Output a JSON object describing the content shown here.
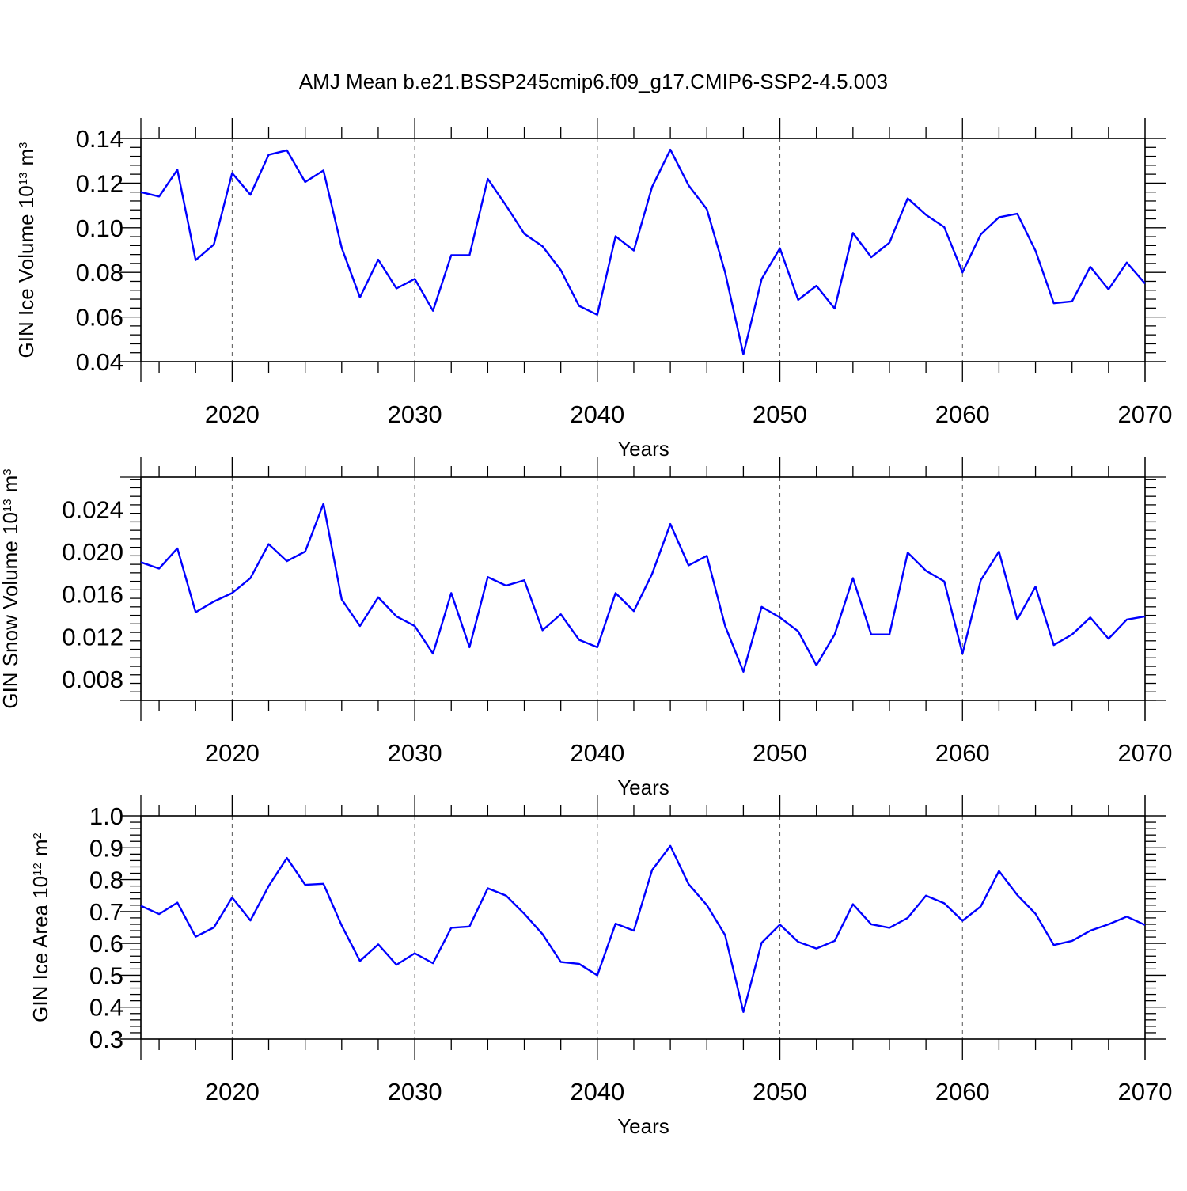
{
  "title": "AMJ Mean b.e21.BSSP245cmip6.f09_g17.CMIP6-SSP2-4.5.003",
  "colors": {
    "line": "#0000ff",
    "axis": "#000000",
    "grid": "#555555"
  },
  "chart_data": [
    {
      "type": "line",
      "ylabel_main": "GIN Ice Volume 10",
      "ylabel_exp": "13",
      "ylabel_unit": "m",
      "ylabel_unit_exp": "3",
      "xlabel": "Years",
      "xlim": [
        2015,
        2070
      ],
      "ylim": [
        0.04,
        0.14
      ],
      "yticks": [
        0.04,
        0.06,
        0.08,
        0.1,
        0.12,
        0.14
      ],
      "ytick_labels": [
        "0.04",
        "0.06",
        "0.08",
        "0.10",
        "0.12",
        "0.14"
      ],
      "xticks": [
        2020,
        2030,
        2040,
        2050,
        2060,
        2070
      ],
      "xtick_labels": [
        "2020",
        "2030",
        "2040",
        "2050",
        "2060",
        "2070"
      ],
      "grid": "vertical dashed at major x ticks",
      "x": [
        2015,
        2016,
        2017,
        2018,
        2019,
        2020,
        2021,
        2022,
        2023,
        2024,
        2025,
        2026,
        2027,
        2028,
        2029,
        2030,
        2031,
        2032,
        2033,
        2034,
        2035,
        2036,
        2037,
        2038,
        2039,
        2040,
        2041,
        2042,
        2043,
        2044,
        2045,
        2046,
        2047,
        2048,
        2049,
        2050,
        2051,
        2052,
        2053,
        2054,
        2055,
        2056,
        2057,
        2058,
        2059,
        2060,
        2061,
        2062,
        2063,
        2064,
        2065,
        2066,
        2067,
        2068,
        2069,
        2070
      ],
      "y": [
        0.116,
        0.114,
        0.126,
        0.0855,
        0.0925,
        0.1245,
        0.1148,
        0.1327,
        0.1347,
        0.1205,
        0.1257,
        0.091,
        0.0688,
        0.0857,
        0.0728,
        0.0771,
        0.0628,
        0.0877,
        0.0877,
        0.1219,
        0.11,
        0.0973,
        0.0917,
        0.081,
        0.065,
        0.061,
        0.0962,
        0.0898,
        0.1183,
        0.135,
        0.119,
        0.1083,
        0.08,
        0.0433,
        0.077,
        0.0908,
        0.0677,
        0.074,
        0.0638,
        0.0977,
        0.0868,
        0.0933,
        0.1132,
        0.1058,
        0.1003,
        0.08,
        0.097,
        0.1047,
        0.1063,
        0.0897,
        0.0662,
        0.067,
        0.0825,
        0.0724,
        0.0844,
        0.075
      ]
    },
    {
      "type": "line",
      "ylabel_main": "GIN Snow Volume 10",
      "ylabel_exp": "13",
      "ylabel_unit": "m",
      "ylabel_unit_exp": "3",
      "xlabel": "Years",
      "xlim": [
        2015,
        2070
      ],
      "ylim": [
        0.006,
        0.027
      ],
      "yticks": [
        0.008,
        0.012,
        0.016,
        0.02,
        0.024
      ],
      "ytick_labels": [
        "0.008",
        "0.012",
        "0.016",
        "0.020",
        "0.024"
      ],
      "xticks": [
        2020,
        2030,
        2040,
        2050,
        2060,
        2070
      ],
      "xtick_labels": [
        "2020",
        "2030",
        "2040",
        "2050",
        "2060",
        "2070"
      ],
      "grid": "vertical dashed at major x ticks",
      "x": [
        2015,
        2016,
        2017,
        2018,
        2019,
        2020,
        2021,
        2022,
        2023,
        2024,
        2025,
        2026,
        2027,
        2028,
        2029,
        2030,
        2031,
        2032,
        2033,
        2034,
        2035,
        2036,
        2037,
        2038,
        2039,
        2040,
        2041,
        2042,
        2043,
        2044,
        2045,
        2046,
        2047,
        2048,
        2049,
        2050,
        2051,
        2052,
        2053,
        2054,
        2055,
        2056,
        2057,
        2058,
        2059,
        2060,
        2061,
        2062,
        2063,
        2064,
        2065,
        2066,
        2067,
        2068,
        2069,
        2070
      ],
      "y": [
        0.019,
        0.0184,
        0.0203,
        0.0143,
        0.0153,
        0.0161,
        0.0175,
        0.0207,
        0.0191,
        0.02,
        0.0245,
        0.0155,
        0.013,
        0.0157,
        0.0139,
        0.013,
        0.0104,
        0.0161,
        0.011,
        0.0176,
        0.0168,
        0.0173,
        0.0126,
        0.0141,
        0.0117,
        0.011,
        0.0161,
        0.0144,
        0.0179,
        0.0226,
        0.0187,
        0.0196,
        0.013,
        0.0087,
        0.0148,
        0.0138,
        0.0125,
        0.0093,
        0.0122,
        0.0175,
        0.0122,
        0.0122,
        0.0199,
        0.0182,
        0.0172,
        0.0104,
        0.0173,
        0.02,
        0.0136,
        0.0167,
        0.0112,
        0.0122,
        0.0138,
        0.0118,
        0.0136,
        0.0139
      ]
    },
    {
      "type": "line",
      "ylabel_main": "GIN Ice Area 10",
      "ylabel_exp": "12",
      "ylabel_unit": "m",
      "ylabel_unit_exp": "2",
      "xlabel": "Years",
      "xlim": [
        2015,
        2070
      ],
      "ylim": [
        0.3,
        1.0
      ],
      "yticks": [
        0.3,
        0.4,
        0.5,
        0.6,
        0.7,
        0.8,
        0.9,
        1.0
      ],
      "ytick_labels": [
        "0.3",
        "0.4",
        "0.5",
        "0.6",
        "0.7",
        "0.8",
        "0.9",
        "1.0"
      ],
      "xticks": [
        2020,
        2030,
        2040,
        2050,
        2060,
        2070
      ],
      "xtick_labels": [
        "2020",
        "2030",
        "2040",
        "2050",
        "2060",
        "2070"
      ],
      "grid": "vertical dashed at major x ticks",
      "x": [
        2015,
        2016,
        2017,
        2018,
        2019,
        2020,
        2021,
        2022,
        2023,
        2024,
        2025,
        2026,
        2027,
        2028,
        2029,
        2030,
        2031,
        2032,
        2033,
        2034,
        2035,
        2036,
        2037,
        2038,
        2039,
        2040,
        2041,
        2042,
        2043,
        2044,
        2045,
        2046,
        2047,
        2048,
        2049,
        2050,
        2051,
        2052,
        2053,
        2054,
        2055,
        2056,
        2057,
        2058,
        2059,
        2060,
        2061,
        2062,
        2063,
        2064,
        2065,
        2066,
        2067,
        2068,
        2069,
        2070
      ],
      "y": [
        0.718,
        0.692,
        0.728,
        0.621,
        0.65,
        0.744,
        0.672,
        0.78,
        0.868,
        0.784,
        0.787,
        0.656,
        0.545,
        0.597,
        0.533,
        0.569,
        0.538,
        0.649,
        0.653,
        0.773,
        0.75,
        0.693,
        0.629,
        0.542,
        0.536,
        0.5,
        0.662,
        0.64,
        0.83,
        0.906,
        0.786,
        0.72,
        0.626,
        0.385,
        0.602,
        0.659,
        0.605,
        0.584,
        0.608,
        0.723,
        0.66,
        0.649,
        0.68,
        0.75,
        0.726,
        0.671,
        0.716,
        0.827,
        0.752,
        0.693,
        0.595,
        0.608,
        0.64,
        0.66,
        0.684,
        0.658
      ]
    }
  ]
}
